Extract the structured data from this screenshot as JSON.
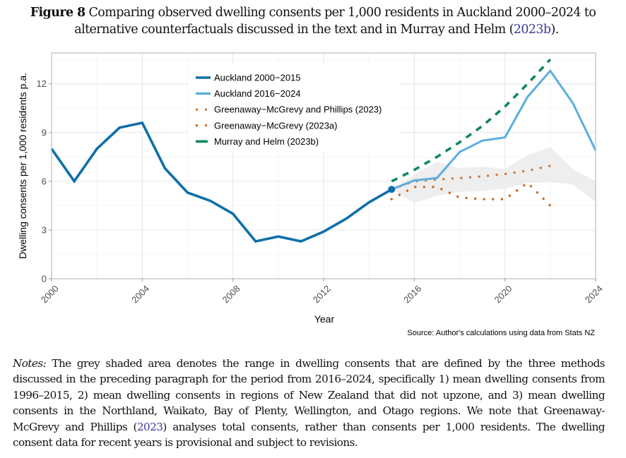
{
  "caption": {
    "figure_label": "Figure 8",
    "text_line1": " Comparing observed dwelling consents per 1,000 residents in Auckland 2000–2024 to",
    "text_line2_pre": "alternative counterfactuals discussed in the text and in Murray and Helm (",
    "text_line2_link": "2023b",
    "text_line2_post": ")."
  },
  "source_note": "Source: Author's calculations using data from Stats NZ",
  "notes": {
    "label": "Notes:",
    "text_pre": " The grey shaded area denotes the range in dwelling consents that are defined by the three methods discussed in the preceding paragraph for the period from 2016–2024, specifically 1) mean dwelling consents from 1996–2015, 2) mean dwelling consents in regions of New Zealand that did not upzone, and 3) mean dwelling consents in the Northland, Waikato, Bay of Plenty, Wellington, and Otago regions. We note that Greenaway-McGrevy and Phillips (",
    "text_link": "2023",
    "text_post": ") analyses total consents, rather than consents per 1,000 residents. The dwelling consent data for recent years is provisional and subject to revisions."
  },
  "chart_data": {
    "type": "line",
    "title": "",
    "xlabel": "Year",
    "ylabel": "Dwelling consents per 1,000 residents p.a.",
    "xlim": [
      2000,
      2024
    ],
    "ylim": [
      0,
      13.9
    ],
    "xticks": [
      2000,
      2004,
      2008,
      2012,
      2016,
      2020,
      2024
    ],
    "yticks": [
      0,
      3,
      6,
      9,
      12
    ],
    "grid": true,
    "legend_position": "top-center",
    "series": [
      {
        "name": "Auckland 2000−2015",
        "style": "solid",
        "color": "#0e6fa9",
        "x": [
          2000,
          2001,
          2002,
          2003,
          2004,
          2005,
          2006,
          2007,
          2008,
          2009,
          2010,
          2011,
          2012,
          2013,
          2014,
          2015
        ],
        "y": [
          8.0,
          6.0,
          8.0,
          9.3,
          9.6,
          6.8,
          5.3,
          4.8,
          4.0,
          2.3,
          2.6,
          2.3,
          2.9,
          3.7,
          4.7,
          5.5
        ],
        "end_marker": true
      },
      {
        "name": "Auckland 2016−2024",
        "style": "solid",
        "color": "#5aaee0",
        "x": [
          2015,
          2016,
          2017,
          2018,
          2019,
          2020,
          2021,
          2022,
          2023,
          2024
        ],
        "y": [
          5.5,
          6.05,
          6.2,
          7.8,
          8.5,
          8.7,
          11.2,
          12.8,
          10.8,
          7.9
        ]
      },
      {
        "name": "Greenaway−McGrevy and Phillips (2023)",
        "style": "dotted",
        "color": "#c8763a",
        "x": [
          2015,
          2016,
          2017,
          2018,
          2019,
          2020,
          2021,
          2022
        ],
        "y": [
          5.5,
          6.0,
          6.1,
          6.2,
          6.3,
          6.45,
          6.65,
          6.95
        ]
      },
      {
        "name": "Greenaway−McGrevy (2023a)",
        "style": "dotted",
        "color": "#c8621a",
        "x": [
          2015,
          2016,
          2017,
          2018,
          2019,
          2020,
          2021,
          2022
        ],
        "y": [
          4.9,
          5.65,
          5.65,
          5.0,
          4.9,
          4.9,
          5.9,
          4.5
        ]
      },
      {
        "name": "Murray and Helm (2023b)",
        "style": "dashed",
        "color": "#12875f",
        "x": [
          2015,
          2016,
          2017,
          2018,
          2019,
          2020,
          2021,
          2022
        ],
        "y": [
          6.0,
          6.7,
          7.5,
          8.4,
          9.4,
          10.6,
          12.0,
          13.5
        ]
      }
    ],
    "range_band": {
      "name": "Counterfactual range",
      "color": "#ebebeb",
      "x": [
        2015,
        2016,
        2017,
        2018,
        2019,
        2020,
        2021,
        2022,
        2023,
        2024
      ],
      "upper": [
        5.55,
        6.4,
        7.2,
        6.8,
        6.9,
        6.75,
        7.6,
        8.1,
        6.75,
        6.0
      ],
      "lower": [
        5.55,
        4.65,
        5.1,
        5.35,
        5.4,
        5.55,
        5.9,
        5.95,
        5.8,
        4.7
      ]
    }
  }
}
